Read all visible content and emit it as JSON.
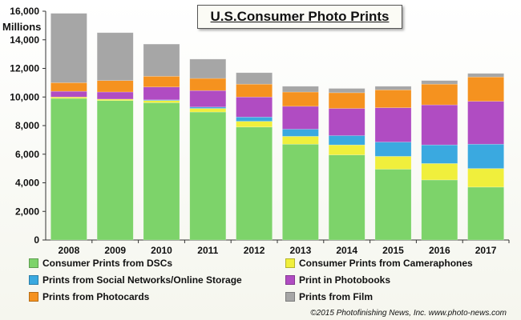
{
  "chart_data": {
    "type": "bar",
    "stacked": true,
    "title": "U.S.Consumer Photo Prints",
    "ylabel": "Millions",
    "xlabel": "",
    "ylim": [
      0,
      16000
    ],
    "yticks": [
      "0",
      "2,000",
      "4,000",
      "6,000",
      "8,000",
      "10,000",
      "12,000",
      "14,000",
      "16,000"
    ],
    "ytick_values": [
      0,
      2000,
      4000,
      6000,
      8000,
      10000,
      12000,
      14000,
      16000
    ],
    "categories": [
      "2008",
      "2009",
      "2010",
      "2011",
      "2012",
      "2013",
      "2014",
      "2015",
      "2016",
      "2017"
    ],
    "legend_placement": "bottom",
    "series": [
      {
        "name": "Consumer Prints from DSCs",
        "color": "#7dd36a",
        "values": [
          9900,
          9750,
          9600,
          8950,
          7900,
          6700,
          5950,
          4950,
          4200,
          3700
        ]
      },
      {
        "name": "Consumer Prints from Cameraphones",
        "color": "#f0ef3c",
        "values": [
          100,
          100,
          150,
          250,
          400,
          550,
          700,
          900,
          1150,
          1300
        ]
      },
      {
        "name": "Prints from Social Networks/Online Storage",
        "color": "#3aa9e0",
        "values": [
          0,
          0,
          50,
          100,
          300,
          500,
          650,
          1000,
          1300,
          1700
        ]
      },
      {
        "name": "Print in Photobooks",
        "color": "#b04cc2",
        "values": [
          400,
          500,
          900,
          1150,
          1400,
          1600,
          1900,
          2400,
          2800,
          3000
        ]
      },
      {
        "name": "Prints from Photocards",
        "color": "#f5921f",
        "values": [
          600,
          800,
          750,
          850,
          900,
          1000,
          1100,
          1250,
          1450,
          1700
        ]
      },
      {
        "name": "Prints from Film",
        "color": "#a6a6a6",
        "values": [
          4850,
          3350,
          2250,
          1350,
          800,
          400,
          300,
          250,
          250,
          250
        ]
      }
    ],
    "grid": false
  },
  "copyright": "©2015 Photofinishing News, Inc.  www.photo-news.com"
}
